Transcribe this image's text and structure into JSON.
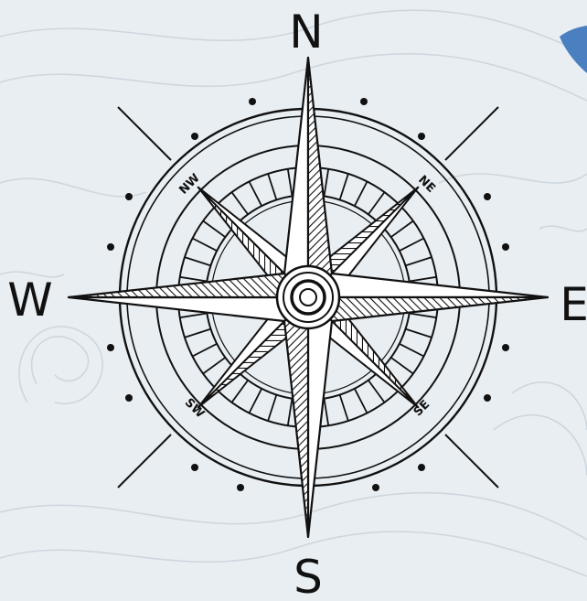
{
  "compass": {
    "labels": {
      "north": "N",
      "south": "S",
      "west": "W",
      "east": "E",
      "northwest": "NW",
      "northeast": "NE",
      "southwest": "SW",
      "southeast": "SE"
    }
  },
  "colors": {
    "background": "#e9eef2",
    "ink": "#111111",
    "texture": "#c9d3dc",
    "accent_blue": "#4a7fc0"
  },
  "icons": [
    "compass-rose-icon"
  ]
}
